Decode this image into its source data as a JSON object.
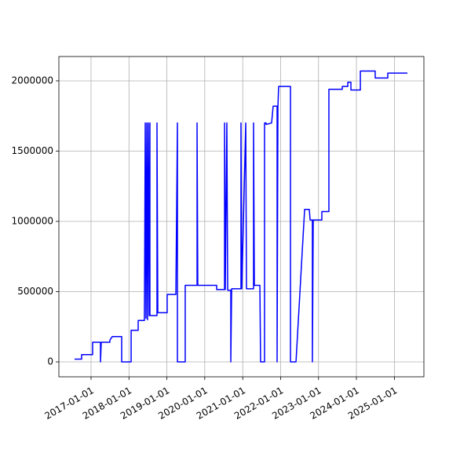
{
  "chart_data": {
    "type": "line",
    "x": [
      "2016-07-26",
      "2016-10-02",
      "2016-10-02",
      "2017-01-16",
      "2017-01-16",
      "2017-04-02",
      "2017-04-02",
      "2017-04-09",
      "2017-07-01",
      "2017-07-01",
      "2017-07-24",
      "2017-10-23",
      "2017-10-23",
      "2018-01-22",
      "2018-01-22",
      "2018-03-31",
      "2018-03-31",
      "2018-05-30",
      "2018-06-07",
      "2018-06-14",
      "2018-06-22",
      "2018-06-29",
      "2018-07-07",
      "2018-07-15",
      "2018-07-22",
      "2018-07-22",
      "2018-09-28",
      "2018-09-28",
      "2018-10-06",
      "2019-01-04",
      "2019-01-04",
      "2019-03-29",
      "2019-04-13",
      "2019-04-13",
      "2019-06-27",
      "2019-06-27",
      "2019-10-19",
      "2019-10-19",
      "2019-10-26",
      "2020-04-25",
      "2020-04-25",
      "2020-07-10",
      "2020-07-10",
      "2020-07-17",
      "2020-08-01",
      "2020-08-09",
      "2020-09-08",
      "2020-09-08",
      "2020-09-16",
      "2020-12-15",
      "2020-12-15",
      "2020-12-23",
      "2021-01-30",
      "2021-02-06",
      "2021-04-15",
      "2021-04-15",
      "2021-04-23",
      "2021-06-15",
      "2021-06-22",
      "2021-07-30",
      "2021-07-30",
      "2021-08-14",
      "2021-08-14",
      "2021-10-06",
      "2021-10-21",
      "2021-11-28",
      "2021-11-28",
      "2021-12-06",
      "2021-12-13",
      "2022-04-06",
      "2022-04-06",
      "2022-05-29",
      "2022-08-20",
      "2022-10-04",
      "2022-10-12",
      "2022-11-03",
      "2022-11-03",
      "2022-11-11",
      "2023-02-02",
      "2023-02-02",
      "2023-04-11",
      "2023-04-11",
      "2023-08-18",
      "2023-08-18",
      "2023-10-10",
      "2023-10-10",
      "2023-11-09",
      "2023-11-09",
      "2024-02-08",
      "2024-02-08",
      "2024-06-30",
      "2024-06-30",
      "2024-10-29",
      "2024-10-29",
      "2025-05-06"
    ],
    "series": [
      {
        "color": "#0000ff",
        "values": [
          20000,
          20000,
          52000,
          52000,
          140000,
          140000,
          0,
          140000,
          140000,
          155000,
          180000,
          180000,
          0,
          0,
          225000,
          225000,
          295000,
          295000,
          1700000,
          310000,
          1700000,
          300000,
          1700000,
          330000,
          1700000,
          330000,
          330000,
          1700000,
          350000,
          350000,
          480000,
          480000,
          1700000,
          0,
          0,
          545000,
          545000,
          1700000,
          545000,
          545000,
          515000,
          515000,
          1700000,
          515000,
          1700000,
          510000,
          510000,
          0,
          520000,
          520000,
          1700000,
          520000,
          1700000,
          520000,
          520000,
          1700000,
          545000,
          545000,
          0,
          0,
          1700000,
          1700000,
          1690000,
          1700000,
          1820000,
          1820000,
          0,
          1820000,
          1960000,
          1960000,
          0,
          0,
          1085000,
          1085000,
          1010000,
          1010000,
          0,
          1010000,
          1010000,
          1070000,
          1070000,
          1940000,
          1940000,
          1960000,
          1960000,
          1990000,
          1990000,
          1935000,
          1935000,
          2070000,
          2070000,
          2020000,
          2020000,
          2055000,
          2055000
        ]
      }
    ],
    "xlim": [
      "2016-02-26",
      "2025-10-12"
    ],
    "xticks": [
      "2017-01-01",
      "2018-01-01",
      "2019-01-01",
      "2020-01-01",
      "2021-01-01",
      "2022-01-01",
      "2023-01-01",
      "2024-01-01",
      "2025-01-01"
    ],
    "ylim": [
      -106000,
      2173000
    ],
    "yticks": [
      0,
      500000,
      1000000,
      1500000,
      2000000
    ],
    "grid": true
  }
}
